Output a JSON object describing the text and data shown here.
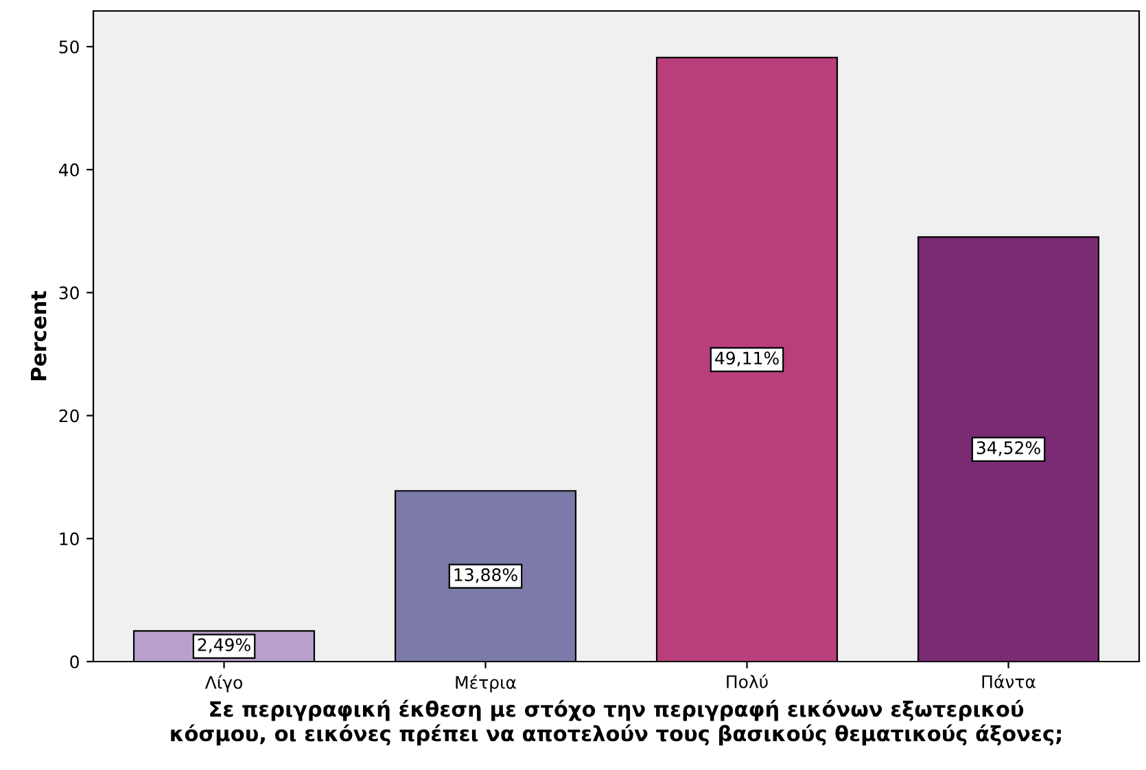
{
  "chart_data": {
    "type": "bar",
    "xlabel": "Σε περιγραφική έκθεση με στόχο την περιγραφή εικόνων εξωτερικού\nκόσμου, οι εικόνες πρέπει να αποτελούν τους βασικούς θεματικούς άξονες;",
    "ylabel": "Percent",
    "categories": [
      "Λίγο",
      "Μέτρια",
      "Πολύ",
      "Πάντα"
    ],
    "values": [
      2.49,
      13.88,
      49.11,
      34.52
    ],
    "colors": [
      "#b9a0cc",
      "#7b7aa8",
      "#b93f7c",
      "#7b2a74"
    ],
    "value_labels": [
      "2,49%",
      "13,88%",
      "49,11%",
      "34,52%"
    ],
    "ylim": [
      0,
      52.9
    ],
    "yticks": [
      0,
      10,
      20,
      30,
      40,
      50
    ],
    "grid": false,
    "legend": false
  }
}
